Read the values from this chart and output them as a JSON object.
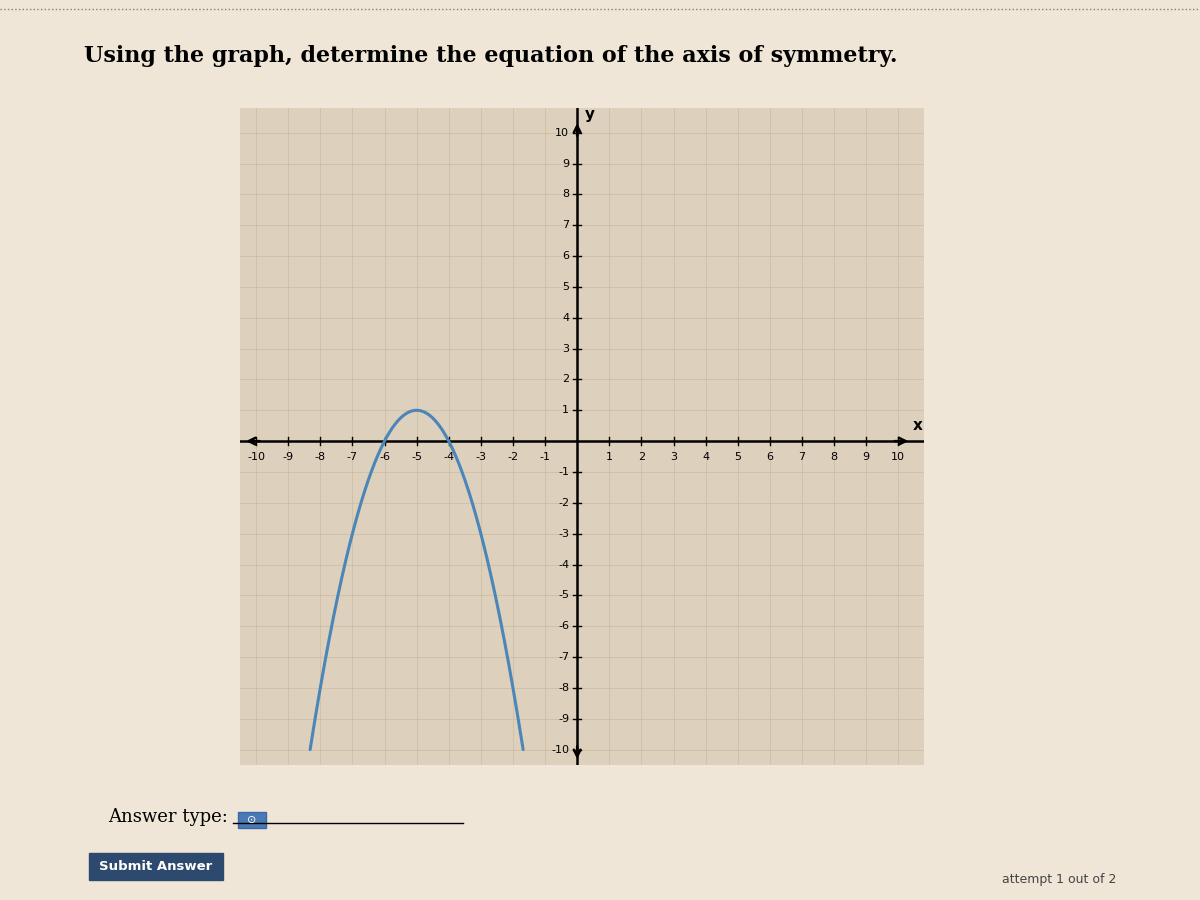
{
  "title": "Using the graph, determine the equation of the axis of symmetry.",
  "title_fontsize": 16,
  "title_fontweight": "bold",
  "xlim": [
    -10,
    10
  ],
  "ylim": [
    -10,
    10
  ],
  "xlabel": "x",
  "ylabel": "y",
  "parabola_color": "#4a86b8",
  "parabola_linewidth": 2.2,
  "vertex_x": -5,
  "vertex_y": 1,
  "parabola_a": -1.0,
  "background_color": "#f0e6d8",
  "grid_color": "#c8b89a",
  "grid_alpha": 0.7,
  "answer_type_text": "Answer type:",
  "submit_text": "Submit Answer",
  "submit_bg": "#2d4a6e",
  "attempt_text": "attempt 1 out of 2",
  "plot_bg": "#ddd0bc",
  "border_color": "#aaaaaa",
  "bottom_panel_bg": "#e8e0d4"
}
